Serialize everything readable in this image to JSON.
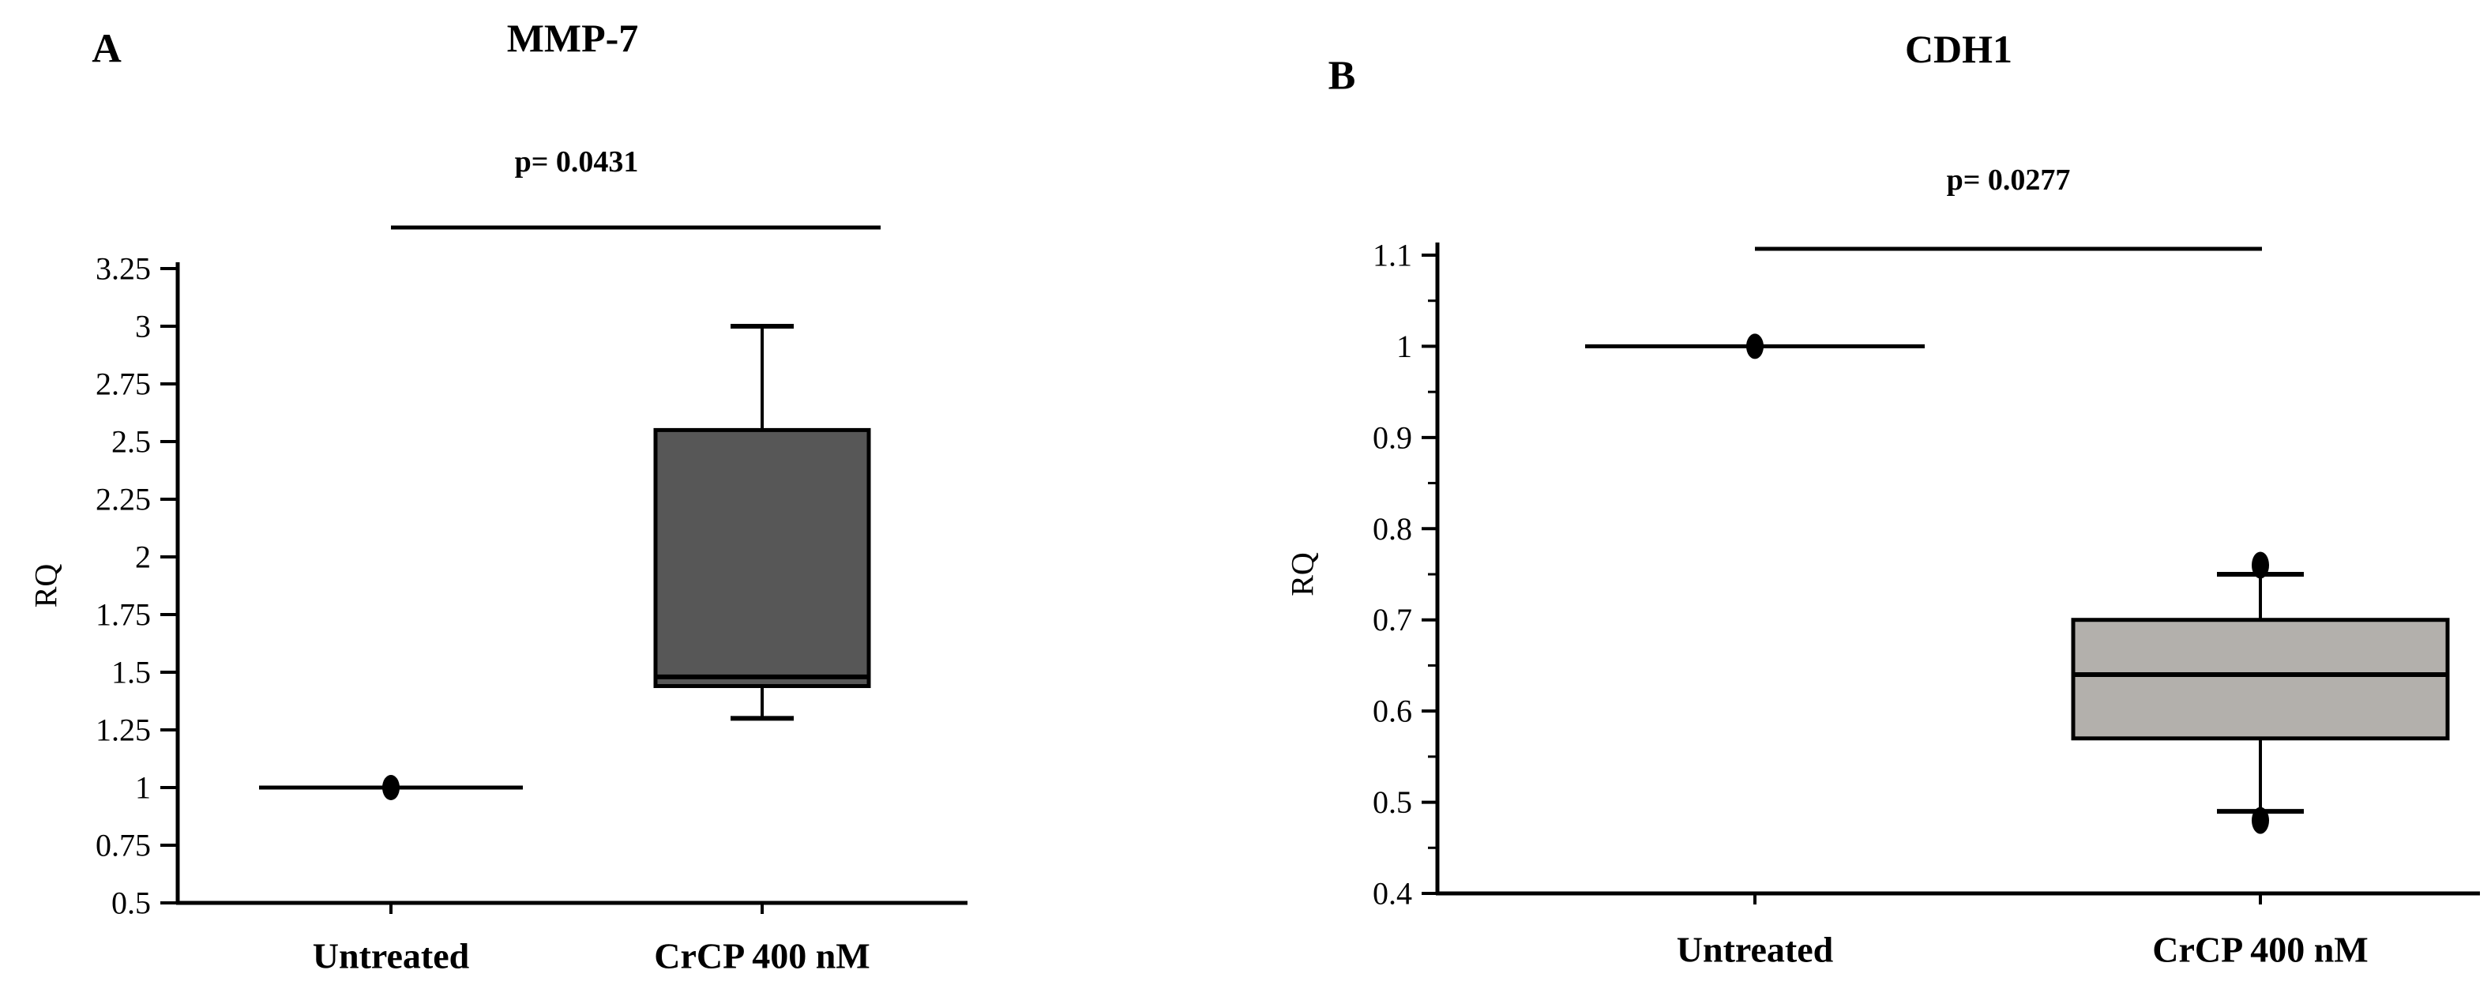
{
  "figure": {
    "background": "#ffffff",
    "line_color": "#000000"
  },
  "chart_data": [
    {
      "type": "box",
      "panel_label": "A",
      "title": "MMP-7",
      "p_label": "p= 0.0431",
      "ylabel": "RQ",
      "xlabel": "",
      "ylim": [
        0.5,
        3.25
      ],
      "ytick_values": [
        3.25,
        3,
        2.75,
        2.5,
        2.25,
        2,
        1.75,
        1.5,
        1.25,
        1,
        0.75,
        0.5
      ],
      "ytick_labels": [
        "3.25",
        "3",
        "2.75",
        "2.5",
        "2.25",
        "2",
        "1.75",
        "1.5",
        "1.25",
        "1",
        "0.75",
        "0.5"
      ],
      "minor_tick_step": null,
      "grid": false,
      "categories": [
        "Untreated",
        "CrCP 400 nM"
      ],
      "groups": [
        {
          "name": "Untreated",
          "style": "reference-line",
          "line_value": 1.0,
          "marker_value": 1.0
        },
        {
          "name": "CrCP 400 nM",
          "style": "box",
          "whisker_low": 1.3,
          "q1": 1.44,
          "median": 1.48,
          "q3": 2.55,
          "whisker_high": 3.0,
          "outliers": [],
          "box_fill": "#575757",
          "box_border": "#000000"
        }
      ],
      "significance": {
        "label": "p= 0.0431",
        "between": [
          "Untreated",
          "CrCP 400 nM"
        ]
      }
    },
    {
      "type": "box",
      "panel_label": "B",
      "title": "CDH1",
      "p_label": "p= 0.0277",
      "ylabel": "RQ",
      "xlabel": "",
      "ylim": [
        0.4,
        1.1
      ],
      "ytick_values": [
        1.1,
        1,
        0.9,
        0.8,
        0.7,
        0.6,
        0.5,
        0.4
      ],
      "ytick_labels": [
        "1.1",
        "1",
        "0.9",
        "0.8",
        "0.7",
        "0.6",
        "0.5",
        "0.4"
      ],
      "minor_tick_step": 0.05,
      "grid": false,
      "categories": [
        "Untreated",
        "CrCP 400 nM"
      ],
      "groups": [
        {
          "name": "Untreated",
          "style": "reference-line",
          "line_value": 1.0,
          "marker_value": 1.0
        },
        {
          "name": "CrCP 400 nM",
          "style": "box",
          "whisker_low": 0.49,
          "q1": 0.57,
          "median": 0.64,
          "q3": 0.7,
          "whisker_high": 0.75,
          "outliers": [
            0.76,
            0.48
          ],
          "box_fill": "#b3b0ac",
          "box_border": "#000000"
        }
      ],
      "significance": {
        "label": "p= 0.0277",
        "between": [
          "Untreated",
          "CrCP 400 nM"
        ]
      }
    }
  ]
}
